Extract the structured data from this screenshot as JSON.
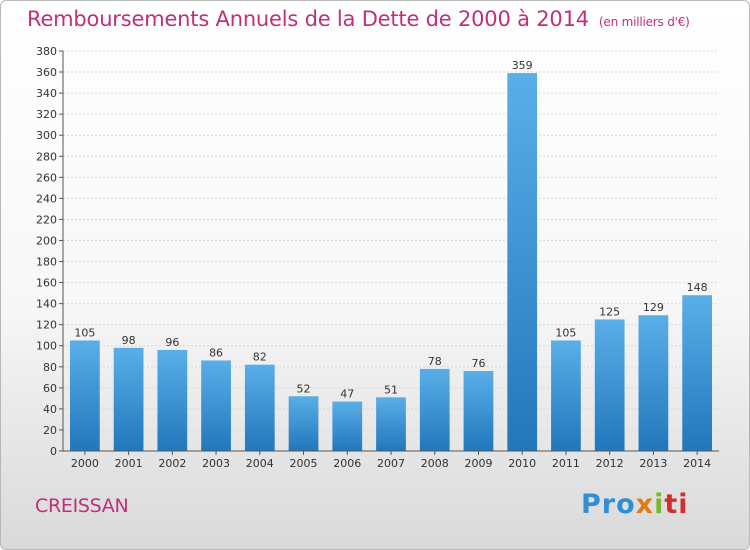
{
  "title": "Remboursements Annuels de la Dette de 2000 à 2014",
  "subtitle": "(en milliers d'€)",
  "place": "CREISSAN",
  "logo": {
    "p1": "Pro",
    "p2": "x",
    "p3": "i",
    "p4": "ti"
  },
  "colors": {
    "bar_light": "#5aaee8",
    "bar_dark": "#2277bb",
    "title": "#c0307a"
  },
  "chart_data": {
    "type": "bar",
    "categories": [
      "2000",
      "2001",
      "2002",
      "2003",
      "2004",
      "2005",
      "2006",
      "2007",
      "2008",
      "2009",
      "2010",
      "2011",
      "2012",
      "2013",
      "2014"
    ],
    "values": [
      105,
      98,
      96,
      86,
      82,
      52,
      47,
      51,
      78,
      76,
      359,
      105,
      125,
      129,
      148
    ],
    "ylim": [
      0,
      380
    ],
    "yticks": [
      0,
      20,
      40,
      60,
      80,
      100,
      120,
      140,
      160,
      180,
      200,
      220,
      240,
      260,
      280,
      300,
      320,
      340,
      360,
      380
    ],
    "grid": true
  }
}
